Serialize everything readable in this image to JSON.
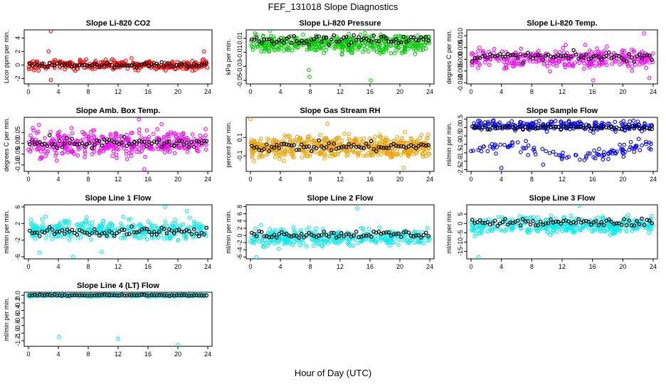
{
  "title": "FEF_131018  Slope Diagnostics",
  "xlabel": "Hour of Day (UTC)",
  "chart_data": [
    {
      "type": "scatter",
      "title": "Slope Li-820 CO2",
      "ylabel": "Licor ppm per min.",
      "color": "#ff0000",
      "xlim": [
        0,
        24
      ],
      "xticks": [
        0,
        4,
        8,
        12,
        16,
        20,
        24
      ],
      "ylim": [
        -2.8,
        5.2
      ],
      "yticks": [
        -2,
        0,
        2,
        4
      ],
      "center": 0,
      "spread": 0.5,
      "series": [
        {
          "x_range": [
            0,
            24
          ],
          "n": 280
        }
      ],
      "outliers": [
        [
          3.0,
          5.0
        ],
        [
          3.0,
          -2.2
        ],
        [
          2.7,
          2.0
        ],
        [
          13.8,
          1.0
        ],
        [
          23.5,
          2.0
        ]
      ],
      "mean_y": 0.0
    },
    {
      "type": "scatter",
      "title": "Slope Li-820 Pressure",
      "ylabel": "kPa per min.",
      "color": "#00cc00",
      "xlim": [
        0,
        24
      ],
      "xticks": [
        0,
        4,
        8,
        12,
        16,
        20,
        24
      ],
      "ylim": [
        -0.055,
        0.022
      ],
      "yticks": [
        -0.05,
        -0.03,
        -0.01,
        0.01
      ],
      "tick_labels": [
        "-0.05",
        "-0.03",
        "-0.01",
        "0.01"
      ],
      "center": 0.002,
      "spread": 0.009,
      "series": [
        {
          "x_range": [
            0,
            24
          ],
          "n": 420
        }
      ],
      "outliers": [
        [
          7.8,
          -0.035
        ],
        [
          7.9,
          -0.045
        ],
        [
          16.1,
          -0.05
        ]
      ],
      "mean_y": 0.008
    },
    {
      "type": "scatter",
      "title": "Slope Li-820 Temp.",
      "ylabel": "degrees C per min.",
      "color": "#ff00ff",
      "xlim": [
        0,
        24
      ],
      "xticks": [
        0,
        4,
        8,
        12,
        16,
        20,
        24
      ],
      "ylim": [
        -0.0105,
        0.0125
      ],
      "yticks": [
        -0.01,
        -0.005,
        0.0,
        0.005,
        0.01
      ],
      "tick_labels": [
        "-0.010",
        "-0.005",
        "0.000",
        "0.005",
        "0.010"
      ],
      "center": 0.0005,
      "spread": 0.003,
      "series": [
        {
          "x_range": [
            0,
            24
          ],
          "n": 320
        }
      ],
      "outliers": [
        [
          16.1,
          -0.009
        ],
        [
          22.8,
          0.011
        ],
        [
          23.5,
          -0.008
        ]
      ],
      "mean_y": 0.001
    },
    {
      "type": "scatter",
      "title": "Slope Amb. Box Temp.",
      "ylabel": "degrees C per min.",
      "color": "#ff00ff",
      "xlim": [
        0,
        24
      ],
      "xticks": [
        0,
        4,
        8,
        12,
        16,
        20,
        24
      ],
      "ylim": [
        -0.13,
        0.12
      ],
      "yticks": [
        -0.1,
        -0.05,
        0.0,
        0.05
      ],
      "tick_labels": [
        "-0.10",
        "-0.05",
        "0.00",
        "0.05"
      ],
      "center": 0.0,
      "spread": 0.04,
      "series": [
        {
          "x_range": [
            0,
            24
          ],
          "n": 380
        }
      ],
      "outliers": [
        [
          14.8,
          0.11
        ],
        [
          15.5,
          -0.12
        ]
      ],
      "mean_y": 0.0
    },
    {
      "type": "scatter",
      "title": "Slope Gas Stream RH",
      "ylabel": "percent per min.",
      "color": "#f0a000",
      "xlim": [
        0,
        24
      ],
      "xticks": [
        0,
        4,
        8,
        12,
        16,
        20,
        24
      ],
      "ylim": [
        -0.27,
        0.32
      ],
      "yticks": [
        -0.1,
        0.1
      ],
      "tick_labels": [
        "-0.1",
        "0.1"
      ],
      "center": 0.0,
      "spread": 0.08,
      "series": [
        {
          "x_range": [
            0,
            24
          ],
          "n": 500
        }
      ],
      "outliers": [
        [
          0.0,
          0.3
        ],
        [
          10.3,
          0.25
        ],
        [
          20.5,
          -0.23
        ]
      ],
      "mean_y": 0.0
    },
    {
      "type": "scatter",
      "title": "Slope Sample Flow",
      "ylabel": "ml/min per min.",
      "color": "#0000ff",
      "xlim": [
        0,
        24
      ],
      "xticks": [
        0,
        4,
        8,
        12,
        16,
        20,
        24
      ],
      "ylim": [
        -2.6,
        0.6
      ],
      "yticks": [
        -2.5,
        -2.0,
        -1.5,
        -1.0,
        -0.5,
        0.0,
        0.5
      ],
      "tick_labels": [
        "-2.5",
        "-2.0",
        "-1.5",
        "-1.0",
        "-0.5",
        "0.0",
        "0.5"
      ],
      "center": 0.1,
      "spread": 0.2,
      "series": [
        {
          "x_range": [
            0,
            24
          ],
          "n": 330
        }
      ],
      "outliers": [
        [
          4.0,
          -2.4
        ],
        [
          9.5,
          -2.2
        ]
      ],
      "mean_y": 0.0
    },
    {
      "type": "scatter",
      "title": "Slope Line 1 Flow",
      "ylabel": "ml/min per min.",
      "color": "#00eeee",
      "xlim": [
        0,
        24
      ],
      "xticks": [
        0,
        4,
        8,
        12,
        16,
        20,
        24
      ],
      "ylim": [
        -6.5,
        6.5
      ],
      "yticks": [
        -6,
        -2,
        2,
        6
      ],
      "center": 0.5,
      "spread": 1.6,
      "series": [
        {
          "x_range": [
            0,
            24
          ],
          "n": 320
        }
      ],
      "outliers": [
        [
          1.5,
          -5.0
        ],
        [
          6.0,
          -6.0
        ],
        [
          9.8,
          -4.8
        ],
        [
          18.3,
          6.0
        ],
        [
          21.2,
          5.0
        ]
      ],
      "mean_y": 0.0
    },
    {
      "type": "scatter",
      "title": "Slope Line 2 Flow",
      "ylabel": "ml/min per min.",
      "color": "#00eeee",
      "xlim": [
        0,
        24
      ],
      "xticks": [
        0,
        4,
        8,
        12,
        16,
        20,
        24
      ],
      "ylim": [
        -6.5,
        8.5
      ],
      "yticks": [
        -6,
        -4,
        -2,
        0,
        2,
        4,
        6,
        8
      ],
      "center": -0.5,
      "spread": 1.6,
      "series": [
        {
          "x_range": [
            0,
            24
          ],
          "n": 330
        }
      ],
      "outliers": [
        [
          14.3,
          7.5
        ],
        [
          0.8,
          -6.0
        ]
      ],
      "mean_y": 0.3
    },
    {
      "type": "scatter",
      "title": "Slope Line 3 Flow",
      "ylabel": "ml/min per min.",
      "color": "#00eeee",
      "xlim": [
        0,
        24
      ],
      "xticks": [
        0,
        4,
        8,
        12,
        16,
        20,
        24
      ],
      "ylim": [
        -19,
        10
      ],
      "yticks": [
        -15,
        -10,
        -5,
        0,
        5
      ],
      "center": -1,
      "spread": 3,
      "series": [
        {
          "x_range": [
            0,
            24
          ],
          "n": 350
        }
      ],
      "outliers": [
        [
          14.3,
          9.5
        ],
        [
          1.0,
          -18.0
        ]
      ],
      "mean_y": 0.5
    },
    {
      "type": "scatter",
      "title": "Slope Line 4 (LT) Flow",
      "ylabel": "ml/min per min.",
      "color": "#00eeee",
      "xlim": [
        0,
        24
      ],
      "xticks": [
        0,
        4,
        8,
        12,
        16,
        20,
        24
      ],
      "ylim": [
        -1.35,
        0.08
      ],
      "yticks": [
        -1.2,
        -1.0,
        -0.8,
        -0.6,
        -0.4,
        -0.2,
        0.0
      ],
      "tick_labels": [
        "-1.2",
        "-1.0",
        "-0.8",
        "-0.6",
        "-0.4",
        "-0.2",
        "0.0"
      ],
      "center": 0.0,
      "spread": 0.02,
      "series": [
        {
          "x_range": [
            0,
            24
          ],
          "n": 260
        }
      ],
      "outliers": [
        [
          4.1,
          -1.1
        ],
        [
          12.0,
          -1.15
        ],
        [
          20.0,
          -1.32
        ]
      ],
      "mean_y": 0.0
    }
  ]
}
